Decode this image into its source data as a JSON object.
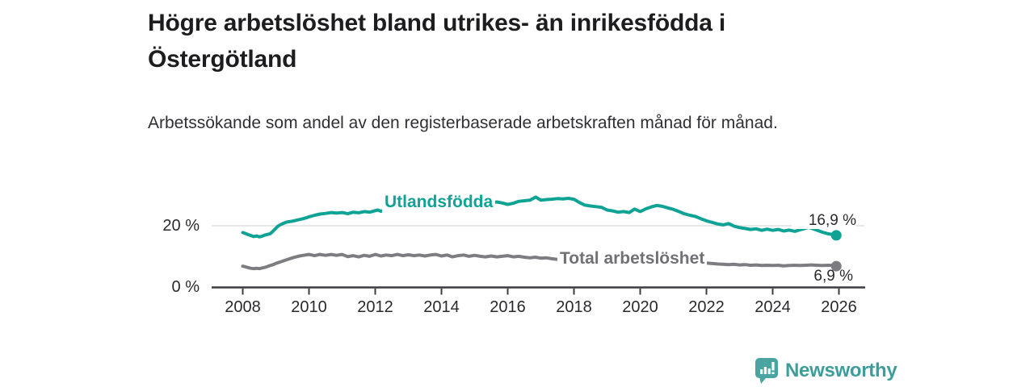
{
  "header": {
    "title": "Högre arbetslöshet bland utrikes- än inrikesfödda i Östergötland",
    "subtitle": "Arbetssökande som andel av den registerbaserade arbetskraften månad för månad."
  },
  "footer": {
    "brand": "Newsworthy",
    "logo_icon": "newsworthy-speech-bubble-bar-chart-icon"
  },
  "colors": {
    "utlandsfodda_line": "#0fa396",
    "total_line": "#7d7d81",
    "axis": "#3c3c40",
    "gridline": "#d9d9d9",
    "text_dark": "#1d1d1f",
    "brand_teal": "#4aa5a2"
  },
  "chart_data": {
    "type": "line",
    "title": "Högre arbetslöshet bland utrikes- än inrikesfödda i Östergötland",
    "subtitle": "Arbetssökande som andel av den registerbaserade arbetskraften månad för månad.",
    "unit": "percent of registered labour force",
    "x_range": [
      2008,
      2026.2
    ],
    "ylim": [
      0,
      32
    ],
    "grid": "single light horizontal gridline at 20 %, dark baseline at 0 %",
    "legend": "inline series labels on lines, end-value labels at right",
    "yticks": [
      {
        "value": 20,
        "label": "20 %"
      },
      {
        "value": 0,
        "label": "0 %"
      }
    ],
    "xticks": [
      {
        "value": 2008,
        "label": "2008"
      },
      {
        "value": 2010,
        "label": "2010"
      },
      {
        "value": 2012,
        "label": "2012"
      },
      {
        "value": 2014,
        "label": "2014"
      },
      {
        "value": 2016,
        "label": "2016"
      },
      {
        "value": 2018,
        "label": "2018"
      },
      {
        "value": 2020,
        "label": "2020"
      },
      {
        "value": 2022,
        "label": "2022"
      },
      {
        "value": 2024,
        "label": "2024"
      },
      {
        "value": 2026,
        "label": "2026"
      }
    ],
    "series": [
      {
        "name": "Utlandsfödda",
        "color": "#0fa396",
        "end_label": "16,9 %",
        "end_value": 16.9,
        "points": [
          [
            2008.0,
            17.8
          ],
          [
            2008.08,
            17.5
          ],
          [
            2008.17,
            17.1
          ],
          [
            2008.25,
            16.8
          ],
          [
            2008.33,
            16.5
          ],
          [
            2008.42,
            16.7
          ],
          [
            2008.5,
            16.4
          ],
          [
            2008.58,
            16.6
          ],
          [
            2008.67,
            17.0
          ],
          [
            2008.75,
            17.2
          ],
          [
            2008.83,
            17.4
          ],
          [
            2008.92,
            18.3
          ],
          [
            2009.0,
            19.2
          ],
          [
            2009.08,
            20.0
          ],
          [
            2009.17,
            20.5
          ],
          [
            2009.25,
            20.9
          ],
          [
            2009.33,
            21.2
          ],
          [
            2009.5,
            21.5
          ],
          [
            2009.67,
            21.9
          ],
          [
            2009.83,
            22.3
          ],
          [
            2009.92,
            22.6
          ],
          [
            2010.0,
            22.9
          ],
          [
            2010.17,
            23.4
          ],
          [
            2010.33,
            23.8
          ],
          [
            2010.5,
            24.0
          ],
          [
            2010.67,
            24.3
          ],
          [
            2010.83,
            24.1
          ],
          [
            2011.0,
            24.3
          ],
          [
            2011.17,
            23.9
          ],
          [
            2011.33,
            24.4
          ],
          [
            2011.5,
            24.2
          ],
          [
            2011.67,
            24.6
          ],
          [
            2011.83,
            24.4
          ],
          [
            2012.0,
            24.9
          ],
          [
            2012.08,
            25.1
          ],
          [
            2012.17,
            24.7
          ],
          [
            2012.33,
            25.2
          ],
          [
            2012.5,
            25.4
          ],
          [
            2012.67,
            25.6
          ],
          [
            2012.83,
            25.8
          ],
          [
            2013.0,
            26.0
          ],
          [
            2013.17,
            26.2
          ],
          [
            2013.33,
            26.1
          ],
          [
            2013.5,
            26.4
          ],
          [
            2013.67,
            26.6
          ],
          [
            2013.83,
            26.5
          ],
          [
            2014.0,
            26.8
          ],
          [
            2014.17,
            26.9
          ],
          [
            2014.33,
            27.0
          ],
          [
            2014.5,
            27.1
          ],
          [
            2014.67,
            27.2
          ],
          [
            2014.83,
            27.3
          ],
          [
            2015.0,
            27.2
          ],
          [
            2015.17,
            27.4
          ],
          [
            2015.33,
            27.5
          ],
          [
            2015.5,
            27.4
          ],
          [
            2015.67,
            27.7
          ],
          [
            2015.83,
            27.4
          ],
          [
            2016.0,
            26.9
          ],
          [
            2016.17,
            27.3
          ],
          [
            2016.33,
            27.9
          ],
          [
            2016.5,
            28.1
          ],
          [
            2016.67,
            28.3
          ],
          [
            2016.85,
            29.3
          ],
          [
            2017.0,
            28.3
          ],
          [
            2017.17,
            28.5
          ],
          [
            2017.33,
            28.6
          ],
          [
            2017.5,
            28.8
          ],
          [
            2017.67,
            28.7
          ],
          [
            2017.83,
            28.9
          ],
          [
            2018.0,
            28.6
          ],
          [
            2018.17,
            27.5
          ],
          [
            2018.33,
            26.7
          ],
          [
            2018.5,
            26.4
          ],
          [
            2018.67,
            26.2
          ],
          [
            2018.83,
            26.0
          ],
          [
            2019.0,
            25.1
          ],
          [
            2019.17,
            24.8
          ],
          [
            2019.33,
            24.4
          ],
          [
            2019.5,
            24.6
          ],
          [
            2019.67,
            24.3
          ],
          [
            2019.83,
            25.4
          ],
          [
            2019.92,
            25.0
          ],
          [
            2020.0,
            24.6
          ],
          [
            2020.17,
            25.5
          ],
          [
            2020.33,
            26.1
          ],
          [
            2020.5,
            26.6
          ],
          [
            2020.67,
            26.3
          ],
          [
            2020.83,
            25.8
          ],
          [
            2021.0,
            25.3
          ],
          [
            2021.17,
            24.6
          ],
          [
            2021.33,
            23.9
          ],
          [
            2021.5,
            23.4
          ],
          [
            2021.67,
            23.0
          ],
          [
            2021.83,
            22.3
          ],
          [
            2022.0,
            21.6
          ],
          [
            2022.17,
            21.1
          ],
          [
            2022.33,
            20.6
          ],
          [
            2022.5,
            20.3
          ],
          [
            2022.67,
            20.7
          ],
          [
            2022.83,
            19.9
          ],
          [
            2023.0,
            19.4
          ],
          [
            2023.17,
            19.1
          ],
          [
            2023.33,
            18.8
          ],
          [
            2023.5,
            19.0
          ],
          [
            2023.67,
            18.5
          ],
          [
            2023.83,
            18.9
          ],
          [
            2024.0,
            18.5
          ],
          [
            2024.17,
            18.8
          ],
          [
            2024.33,
            18.3
          ],
          [
            2024.5,
            18.6
          ],
          [
            2024.67,
            18.2
          ],
          [
            2024.83,
            18.7
          ],
          [
            2025.0,
            19.2
          ],
          [
            2025.08,
            19.5
          ],
          [
            2025.17,
            19.2
          ],
          [
            2025.33,
            18.6
          ],
          [
            2025.5,
            17.9
          ],
          [
            2025.67,
            17.4
          ],
          [
            2025.83,
            17.1
          ],
          [
            2025.92,
            16.9
          ]
        ]
      },
      {
        "name": "Total arbetslöshet",
        "color": "#7d7d81",
        "end_label": "6,9 %",
        "end_value": 6.9,
        "points": [
          [
            2008.0,
            6.9
          ],
          [
            2008.08,
            6.7
          ],
          [
            2008.17,
            6.4
          ],
          [
            2008.25,
            6.2
          ],
          [
            2008.33,
            6.1
          ],
          [
            2008.42,
            6.2
          ],
          [
            2008.5,
            6.1
          ],
          [
            2008.58,
            6.3
          ],
          [
            2008.67,
            6.5
          ],
          [
            2008.75,
            6.8
          ],
          [
            2008.83,
            7.1
          ],
          [
            2008.92,
            7.4
          ],
          [
            2009.0,
            7.8
          ],
          [
            2009.17,
            8.4
          ],
          [
            2009.33,
            9.0
          ],
          [
            2009.5,
            9.6
          ],
          [
            2009.67,
            10.1
          ],
          [
            2009.83,
            10.4
          ],
          [
            2010.0,
            10.7
          ],
          [
            2010.17,
            10.3
          ],
          [
            2010.33,
            10.7
          ],
          [
            2010.5,
            10.4
          ],
          [
            2010.67,
            10.7
          ],
          [
            2010.83,
            10.4
          ],
          [
            2011.0,
            10.7
          ],
          [
            2011.17,
            10.0
          ],
          [
            2011.33,
            10.3
          ],
          [
            2011.5,
            9.9
          ],
          [
            2011.67,
            10.4
          ],
          [
            2011.83,
            10.1
          ],
          [
            2012.0,
            10.7
          ],
          [
            2012.17,
            10.2
          ],
          [
            2012.33,
            10.5
          ],
          [
            2012.5,
            10.3
          ],
          [
            2012.67,
            10.7
          ],
          [
            2012.83,
            10.3
          ],
          [
            2013.0,
            10.6
          ],
          [
            2013.17,
            10.3
          ],
          [
            2013.33,
            10.5
          ],
          [
            2013.5,
            10.2
          ],
          [
            2013.67,
            10.5
          ],
          [
            2013.83,
            10.7
          ],
          [
            2014.0,
            10.2
          ],
          [
            2014.17,
            10.5
          ],
          [
            2014.33,
            9.9
          ],
          [
            2014.5,
            10.3
          ],
          [
            2014.67,
            10.5
          ],
          [
            2014.83,
            10.1
          ],
          [
            2015.0,
            10.4
          ],
          [
            2015.17,
            10.1
          ],
          [
            2015.33,
            9.9
          ],
          [
            2015.5,
            10.2
          ],
          [
            2015.67,
            9.9
          ],
          [
            2015.83,
            10.1
          ],
          [
            2016.0,
            10.3
          ],
          [
            2016.17,
            9.9
          ],
          [
            2016.33,
            10.1
          ],
          [
            2016.5,
            9.8
          ],
          [
            2016.67,
            9.6
          ],
          [
            2016.83,
            9.8
          ],
          [
            2017.0,
            9.5
          ],
          [
            2017.17,
            9.6
          ],
          [
            2017.33,
            9.3
          ],
          [
            2017.5,
            9.1
          ],
          [
            2017.67,
            9.0
          ],
          [
            2018.0,
            8.8
          ],
          [
            2018.5,
            8.5
          ],
          [
            2019.0,
            8.2
          ],
          [
            2019.5,
            8.0
          ],
          [
            2020.0,
            8.4
          ],
          [
            2020.33,
            9.4
          ],
          [
            2020.67,
            9.6
          ],
          [
            2021.0,
            9.1
          ],
          [
            2021.5,
            8.4
          ],
          [
            2022.0,
            7.9
          ],
          [
            2022.33,
            7.6
          ],
          [
            2022.5,
            7.5
          ],
          [
            2022.67,
            7.4
          ],
          [
            2022.83,
            7.5
          ],
          [
            2023.0,
            7.3
          ],
          [
            2023.17,
            7.4
          ],
          [
            2023.33,
            7.2
          ],
          [
            2023.5,
            7.3
          ],
          [
            2023.67,
            7.1
          ],
          [
            2023.83,
            7.2
          ],
          [
            2024.0,
            7.1
          ],
          [
            2024.17,
            7.2
          ],
          [
            2024.33,
            7.0
          ],
          [
            2024.5,
            7.1
          ],
          [
            2024.67,
            7.2
          ],
          [
            2024.83,
            7.1
          ],
          [
            2025.0,
            7.2
          ],
          [
            2025.17,
            7.3
          ],
          [
            2025.33,
            7.2
          ],
          [
            2025.5,
            7.1
          ],
          [
            2025.67,
            7.2
          ],
          [
            2025.83,
            7.1
          ],
          [
            2025.92,
            6.9
          ]
        ]
      }
    ]
  }
}
